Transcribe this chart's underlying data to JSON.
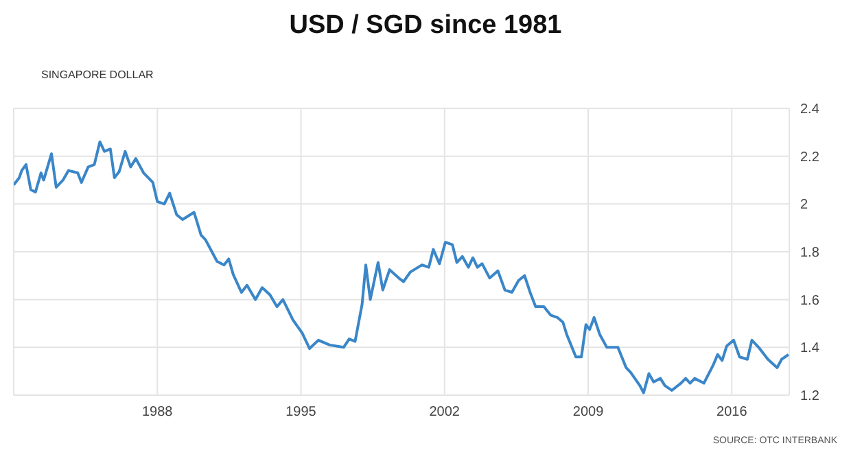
{
  "chart_data": {
    "type": "line",
    "title": "USD / SGD since 1981",
    "ylabel": "SINGAPORE DOLLAR",
    "annotations": [
      "SOURCE: OTC INTERBANK"
    ],
    "xlim": [
      1981,
      2018.8
    ],
    "xticks": [
      1988,
      1995,
      2002,
      2009,
      2016
    ],
    "ylim": [
      1.2,
      2.4
    ],
    "yticks": [
      1.2,
      1.4,
      1.6,
      1.8,
      2,
      2.2,
      2.4
    ],
    "grid": true,
    "series": [
      {
        "color": "#3a86c8",
        "x": [
          1981.0,
          1981.27,
          1981.39,
          1981.6,
          1981.83,
          1982.06,
          1982.33,
          1982.46,
          1982.84,
          1983.07,
          1983.4,
          1983.67,
          1984.12,
          1984.3,
          1984.63,
          1984.93,
          1985.2,
          1985.42,
          1985.71,
          1985.91,
          1986.14,
          1986.43,
          1986.7,
          1986.95,
          1987.33,
          1987.78,
          1988.0,
          1988.34,
          1988.6,
          1988.94,
          1989.23,
          1989.79,
          1990.13,
          1990.35,
          1990.91,
          1991.25,
          1991.48,
          1991.7,
          1992.1,
          1992.37,
          1992.78,
          1993.11,
          1993.49,
          1993.83,
          1994.12,
          1994.61,
          1995.06,
          1995.42,
          1995.85,
          1996.4,
          1997.08,
          1997.35,
          1997.64,
          1997.98,
          1998.16,
          1998.38,
          1998.76,
          1998.99,
          1999.32,
          1999.77,
          2000.0,
          2000.33,
          2000.9,
          2001.23,
          2001.45,
          2001.75,
          2002.04,
          2002.38,
          2002.6,
          2002.87,
          2003.16,
          2003.38,
          2003.6,
          2003.83,
          2004.2,
          2004.6,
          2004.94,
          2005.28,
          2005.61,
          2005.9,
          2006.17,
          2006.44,
          2006.84,
          2007.17,
          2007.5,
          2007.77,
          2007.95,
          2008.4,
          2008.67,
          2008.89,
          2009.07,
          2009.29,
          2009.56,
          2009.91,
          2010.18,
          2010.45,
          2010.85,
          2011.07,
          2011.52,
          2011.7,
          2011.96,
          2012.19,
          2012.52,
          2012.74,
          2013.08,
          2013.52,
          2013.75,
          2013.97,
          2014.19,
          2014.64,
          2015.09,
          2015.31,
          2015.53,
          2015.75,
          2016.09,
          2016.38,
          2016.76,
          2016.98,
          2017.31,
          2017.76,
          2018.21,
          2018.43,
          2018.76
        ],
        "values": [
          2.08,
          2.11,
          2.14,
          2.165,
          2.06,
          2.05,
          2.13,
          2.1,
          2.21,
          2.07,
          2.1,
          2.14,
          2.13,
          2.09,
          2.155,
          2.165,
          2.26,
          2.22,
          2.23,
          2.11,
          2.135,
          2.22,
          2.155,
          2.19,
          2.13,
          2.09,
          2.01,
          2.0,
          2.045,
          1.955,
          1.935,
          1.965,
          1.87,
          1.85,
          1.76,
          1.745,
          1.77,
          1.705,
          1.63,
          1.66,
          1.6,
          1.65,
          1.62,
          1.57,
          1.6,
          1.515,
          1.46,
          1.395,
          1.43,
          1.41,
          1.4,
          1.435,
          1.425,
          1.58,
          1.745,
          1.6,
          1.755,
          1.64,
          1.725,
          1.69,
          1.675,
          1.715,
          1.745,
          1.735,
          1.81,
          1.75,
          1.84,
          1.83,
          1.755,
          1.78,
          1.735,
          1.775,
          1.735,
          1.75,
          1.69,
          1.72,
          1.64,
          1.63,
          1.68,
          1.7,
          1.63,
          1.57,
          1.57,
          1.535,
          1.525,
          1.505,
          1.455,
          1.36,
          1.36,
          1.495,
          1.475,
          1.525,
          1.455,
          1.4,
          1.4,
          1.4,
          1.315,
          1.295,
          1.24,
          1.21,
          1.29,
          1.255,
          1.27,
          1.24,
          1.22,
          1.25,
          1.27,
          1.25,
          1.27,
          1.25,
          1.325,
          1.37,
          1.345,
          1.405,
          1.43,
          1.36,
          1.35,
          1.43,
          1.4,
          1.35,
          1.315,
          1.35,
          1.37
        ]
      }
    ]
  }
}
